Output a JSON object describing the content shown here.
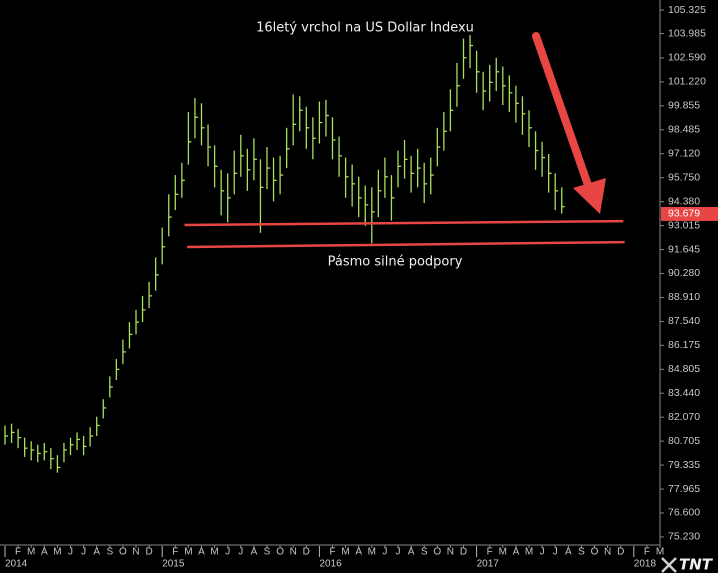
{
  "chart_data": {
    "type": "ohlc",
    "title": "16letý vrchol na US Dollar Indexu",
    "annotation": "Pásmo silné podpory",
    "logo": "TNT",
    "color": "#a8e060",
    "line_color": "#e84545",
    "x": [
      0,
      0.5,
      1,
      1.5,
      2,
      2.5,
      3,
      3.5,
      4,
      4.5,
      5,
      5.5,
      6,
      6.5,
      7,
      7.5,
      8,
      8.5,
      9,
      9.5,
      10,
      10.5,
      11,
      11.5,
      12,
      12.5,
      13,
      13.5,
      14,
      14.5,
      15,
      15.5,
      16,
      16.5,
      17,
      17.5,
      18,
      18.5,
      19,
      19.5,
      20,
      20.5,
      21,
      21.5,
      22,
      22.5,
      23,
      23.5,
      24,
      24.5,
      25,
      25.5,
      26,
      26.5,
      27,
      27.5,
      28,
      28.5,
      29,
      29.5,
      30,
      30.5,
      31,
      31.5,
      32,
      32.5,
      33,
      33.5,
      34,
      34.5,
      35,
      35.5,
      36,
      36.5,
      37,
      37.5,
      38,
      38.5,
      39,
      39.5,
      40,
      40.5,
      41,
      41.5,
      42,
      42.5
    ],
    "high": [
      81.6,
      81.7,
      81.4,
      80.9,
      80.7,
      80.5,
      80.6,
      80.3,
      79.9,
      80.6,
      80.9,
      81.2,
      81.0,
      81.5,
      82.1,
      83.1,
      84.4,
      85.4,
      86.5,
      87.5,
      88.2,
      89.0,
      89.8,
      91.2,
      92.9,
      94.8,
      95.9,
      96.6,
      99.5,
      100.3,
      100.0,
      98.8,
      97.6,
      96.2,
      96.0,
      97.3,
      98.2,
      97.4,
      98.0,
      96.8,
      97.5,
      96.9,
      97.0,
      98.6,
      100.5,
      100.4,
      99.8,
      99.2,
      100.1,
      100.2,
      99.2,
      98.1,
      96.9,
      96.5,
      95.8,
      95.3,
      95.2,
      96.2,
      96.9,
      95.9,
      97.3,
      97.9,
      97.0,
      97.4,
      96.6,
      96.9,
      98.6,
      99.5,
      100.8,
      102.3,
      103.7,
      103.9,
      103.0,
      101.8,
      102.2,
      102.6,
      102.1,
      101.6,
      101.0,
      100.4,
      99.6,
      98.4,
      97.8,
      97.1,
      96.0,
      95.2
    ],
    "low": [
      80.5,
      80.6,
      80.3,
      79.8,
      79.6,
      79.5,
      79.6,
      79.1,
      78.9,
      79.5,
      79.9,
      80.2,
      79.9,
      80.4,
      81.0,
      82.0,
      83.2,
      84.2,
      85.1,
      86.0,
      86.8,
      87.5,
      88.3,
      89.3,
      90.8,
      92.4,
      93.9,
      94.6,
      96.5,
      98.0,
      97.6,
      96.4,
      95.2,
      93.6,
      93.2,
      94.8,
      95.8,
      95.0,
      95.6,
      92.6,
      95.1,
      94.4,
      94.8,
      96.3,
      97.6,
      98.4,
      97.4,
      96.8,
      97.7,
      98.1,
      96.8,
      95.8,
      94.6,
      94.1,
      93.5,
      93.0,
      92.0,
      93.5,
      94.6,
      93.3,
      95.2,
      95.7,
      94.9,
      95.2,
      94.3,
      94.8,
      96.4,
      97.3,
      98.4,
      99.8,
      101.4,
      102.0,
      100.6,
      99.6,
      100.1,
      100.7,
      99.9,
      99.5,
      98.9,
      98.2,
      97.5,
      96.2,
      95.8,
      94.9,
      93.9,
      93.7
    ],
    "close": [
      81.0,
      81.2,
      80.9,
      80.3,
      80.2,
      80.0,
      80.1,
      79.7,
      79.2,
      80.2,
      80.5,
      80.8,
      80.4,
      81.0,
      81.6,
      82.6,
      83.8,
      84.8,
      85.8,
      86.8,
      87.5,
      88.2,
      89.0,
      90.2,
      91.8,
      93.5,
      94.8,
      95.6,
      97.8,
      99.2,
      98.6,
      97.5,
      96.4,
      95.0,
      94.6,
      96.0,
      97.0,
      96.2,
      96.8,
      95.2,
      96.3,
      95.6,
      95.9,
      97.4,
      98.8,
      99.6,
      98.6,
      98.0,
      98.9,
      99.3,
      97.9,
      97.0,
      95.8,
      95.4,
      94.6,
      94.2,
      93.8,
      95.0,
      95.8,
      94.6,
      96.4,
      96.8,
      96.0,
      96.3,
      95.4,
      95.9,
      97.5,
      98.4,
      99.6,
      101.0,
      102.6,
      103.3,
      101.8,
      100.7,
      101.2,
      101.8,
      101.0,
      100.6,
      100.0,
      99.4,
      98.6,
      97.3,
      96.9,
      96.0,
      95.0,
      94.1
    ],
    "last_price": 93.679,
    "support_lines": [
      {
        "x": [
          13.7,
          47.2
        ],
        "y": [
          93.05,
          93.27
        ]
      },
      {
        "x": [
          13.9,
          47.3
        ],
        "y": [
          91.79,
          92.07
        ]
      }
    ],
    "xlim": [
      0,
      50
    ],
    "ylim": [
      74.77,
      105.9
    ],
    "yticks": [
      {
        "value": 75.23,
        "label": "75.230"
      },
      {
        "value": 76.6,
        "label": "76.600"
      },
      77.965,
      79.335,
      80.705,
      {
        "value": 82.07,
        "label": "82.070"
      },
      {
        "value": 83.44,
        "label": "83.440"
      },
      84.805,
      86.175,
      {
        "value": 87.54,
        "label": "87.540"
      },
      {
        "value": 88.91,
        "label": "88.910"
      },
      {
        "value": 90.28,
        "label": "90.280"
      },
      91.645,
      93.015,
      {
        "value": 94.38,
        "label": "94.380"
      },
      {
        "value": 95.75,
        "label": "95.750"
      },
      {
        "value": 97.12,
        "label": "97.120"
      },
      98.485,
      99.855,
      {
        "value": 101.22,
        "label": "101.220"
      },
      {
        "value": 102.59,
        "label": "102.590"
      },
      103.985,
      105.325
    ],
    "xticks": [
      {
        "value": 1,
        "label": "F"
      },
      {
        "value": 2,
        "label": "M"
      },
      {
        "value": 3,
        "label": "A"
      },
      {
        "value": 4,
        "label": "M"
      },
      {
        "value": 5,
        "label": "J"
      },
      {
        "value": 6,
        "label": "J"
      },
      {
        "value": 7,
        "label": "A"
      },
      {
        "value": 8,
        "label": "S"
      },
      {
        "value": 9,
        "label": "O"
      },
      {
        "value": 10,
        "label": "N"
      },
      {
        "value": 11,
        "label": "D"
      },
      {
        "value": 13,
        "label": "F"
      },
      {
        "value": 14,
        "label": "M"
      },
      {
        "value": 15,
        "label": "A"
      },
      {
        "value": 16,
        "label": "M"
      },
      {
        "value": 17,
        "label": "J"
      },
      {
        "value": 18,
        "label": "J"
      },
      {
        "value": 19,
        "label": "A"
      },
      {
        "value": 20,
        "label": "S"
      },
      {
        "value": 21,
        "label": "O"
      },
      {
        "value": 22,
        "label": "N"
      },
      {
        "value": 23,
        "label": "D"
      },
      {
        "value": 25,
        "label": "F"
      },
      {
        "value": 26,
        "label": "M"
      },
      {
        "value": 27,
        "label": "A"
      },
      {
        "value": 28,
        "label": "M"
      },
      {
        "value": 29,
        "label": "J"
      },
      {
        "value": 30,
        "label": "J"
      },
      {
        "value": 31,
        "label": "A"
      },
      {
        "value": 32,
        "label": "S"
      },
      {
        "value": 33,
        "label": "O"
      },
      {
        "value": 34,
        "label": "N"
      },
      {
        "value": 35,
        "label": "D"
      },
      {
        "value": 37,
        "label": "F"
      },
      {
        "value": 38,
        "label": "M"
      },
      {
        "value": 39,
        "label": "A"
      },
      {
        "value": 40,
        "label": "M"
      },
      {
        "value": 41,
        "label": "J"
      },
      {
        "value": 42,
        "label": "J"
      },
      {
        "value": 43,
        "label": "A"
      },
      {
        "value": 44,
        "label": "S"
      },
      {
        "value": 45,
        "label": "O"
      },
      {
        "value": 46,
        "label": "N"
      },
      {
        "value": 47,
        "label": "D"
      },
      {
        "value": 49,
        "label": "F"
      },
      {
        "value": 50,
        "label": "M"
      }
    ],
    "year_ticks": [
      {
        "value": 0,
        "label": "2014"
      },
      {
        "value": 12,
        "label": "2015"
      },
      {
        "value": 24,
        "label": "2016"
      },
      {
        "value": 36,
        "label": "2017"
      },
      {
        "value": 48,
        "label": "2018"
      }
    ]
  }
}
